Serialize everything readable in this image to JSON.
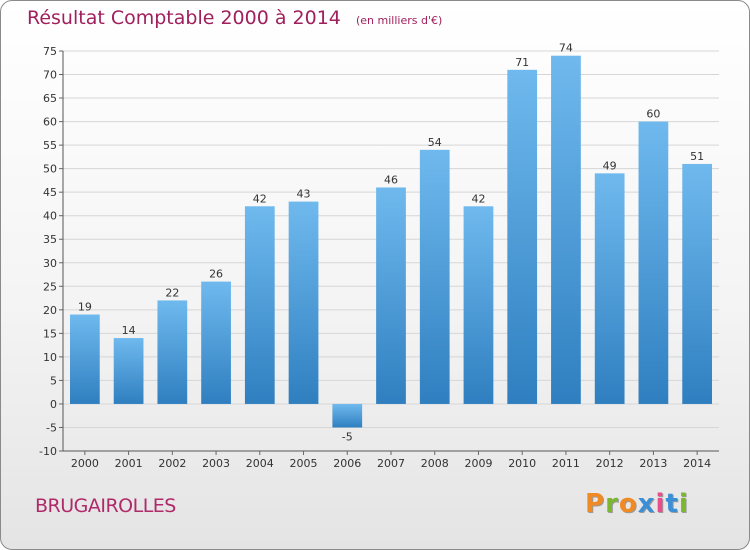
{
  "chart_data": {
    "type": "bar",
    "title": "Résultat Comptable 2000 à 2014",
    "subtitle": "(en milliers d'€)",
    "categories": [
      "2000",
      "2001",
      "2002",
      "2003",
      "2004",
      "2005",
      "2006",
      "2007",
      "2008",
      "2009",
      "2010",
      "2011",
      "2012",
      "2013",
      "2014"
    ],
    "values": [
      19,
      14,
      22,
      26,
      42,
      43,
      -5,
      46,
      54,
      42,
      71,
      74,
      49,
      60,
      51
    ],
    "ylim": [
      -10,
      75
    ],
    "yticks": [
      -10,
      -5,
      0,
      5,
      10,
      15,
      20,
      25,
      30,
      35,
      40,
      45,
      50,
      55,
      60,
      65,
      70,
      75
    ],
    "xlabel": "",
    "ylabel": "",
    "grid": true
  },
  "footer": {
    "commune": "BRUGAIROLLES",
    "logo_letters": [
      "P",
      "r",
      "o",
      "x",
      "i",
      "t",
      "i"
    ]
  },
  "colors": {
    "bar_light": "#6fb9ee",
    "bar_dark": "#2f7fc0",
    "grid": "#d6d6d6",
    "title": "#a0205c",
    "logo": [
      "#f08a24",
      "#7cb82f",
      "#f08a24",
      "#3a8fd6",
      "#e94d8a",
      "#3a8fd6",
      "#7cb82f"
    ]
  }
}
